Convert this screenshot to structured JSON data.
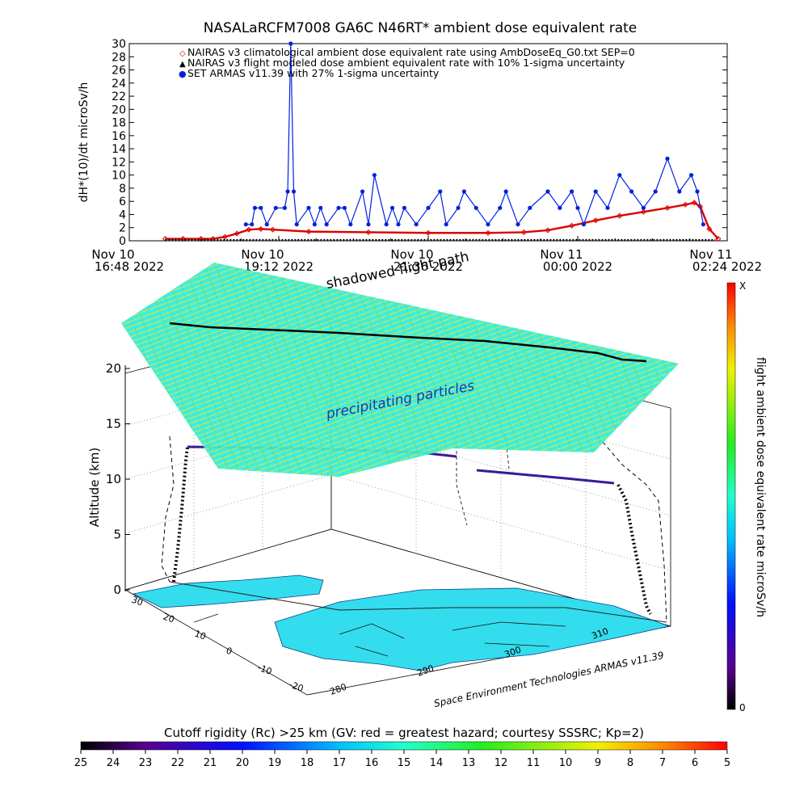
{
  "title": "NASALaRCFM7008   GA6C N46RT* ambient dose equivalent rate",
  "chart_data": [
    {
      "type": "line",
      "ylabel": "dH*(10)/dt microSv/h",
      "ylim": [
        0,
        30
      ],
      "yticks": [
        "0",
        "2",
        "4",
        "6",
        "8",
        "10",
        "12",
        "14",
        "16",
        "18",
        "20",
        "22",
        "24",
        "26",
        "28",
        "30"
      ],
      "xticks": [
        {
          "line1": "Nov 10",
          "line2": "16:48 2022"
        },
        {
          "line1": "Nov 10",
          "line2": "19:12 2022"
        },
        {
          "line1": "Nov 10",
          "line2": "21:36 2022"
        },
        {
          "line1": "Nov 11",
          "line2": "00:00 2022"
        },
        {
          "line1": "Nov 11",
          "line2": "02:24 2022"
        }
      ],
      "legend": [
        {
          "label": "NAIRAS v3 climatological ambient dose equivalent rate using AmbDoseEq_G0.txt SEP=0",
          "marker": "◇",
          "color": "#cc0000"
        },
        {
          "label": "NAIRAS v3 flight modeled dose ambient equivalent rate with 10% 1-sigma uncertainty",
          "marker": "▲",
          "color": "#000000"
        },
        {
          "label": "SET ARMAS v11.39 with 27% 1-sigma uncertainty",
          "marker": "●",
          "color": "#0022dd"
        }
      ],
      "series": [
        {
          "name": "NAIRAS v3 climatological ambient dose equivalent rate using AmbDoseEq_G0.txt SEP=0",
          "color": "#dd0000",
          "x": [
            0.06,
            0.09,
            0.12,
            0.14,
            0.16,
            0.18,
            0.2,
            0.22,
            0.24,
            0.3,
            0.4,
            0.5,
            0.6,
            0.66,
            0.7,
            0.74,
            0.78,
            0.82,
            0.86,
            0.9,
            0.93,
            0.945,
            0.955,
            0.97,
            0.985
          ],
          "values": [
            0.3,
            0.3,
            0.3,
            0.3,
            0.6,
            1.1,
            1.7,
            1.8,
            1.7,
            1.4,
            1.3,
            1.2,
            1.2,
            1.3,
            1.6,
            2.3,
            3.1,
            3.8,
            4.4,
            5.0,
            5.5,
            5.8,
            5.2,
            1.8,
            0.3
          ]
        },
        {
          "name": "NAIRAS v3 flight modeled dose ambient equivalent rate with 10% 1-sigma uncertainty",
          "color": "#000000",
          "x": [
            0.06,
            0.98
          ],
          "values": [
            0.1,
            0.1
          ]
        },
        {
          "name": "SET ARMAS v11.39 with 27% 1-sigma uncertainty",
          "color": "#0022dd",
          "x": [
            0.195,
            0.205,
            0.21,
            0.22,
            0.23,
            0.245,
            0.26,
            0.265,
            0.27,
            0.275,
            0.28,
            0.3,
            0.31,
            0.32,
            0.33,
            0.35,
            0.36,
            0.37,
            0.39,
            0.4,
            0.41,
            0.43,
            0.44,
            0.45,
            0.46,
            0.48,
            0.5,
            0.52,
            0.53,
            0.55,
            0.56,
            0.58,
            0.6,
            0.62,
            0.63,
            0.65,
            0.67,
            0.7,
            0.72,
            0.74,
            0.75,
            0.76,
            0.78,
            0.8,
            0.82,
            0.84,
            0.86,
            0.88,
            0.9,
            0.92,
            0.94,
            0.95,
            0.96
          ],
          "values": [
            2.5,
            2.5,
            5,
            5,
            2.5,
            5,
            5,
            7.5,
            30,
            7.5,
            2.5,
            5,
            2.5,
            5,
            2.5,
            5,
            5,
            2.5,
            7.5,
            2.5,
            10,
            2.5,
            5,
            2.5,
            5,
            2.5,
            5,
            7.5,
            2.5,
            5,
            7.5,
            5,
            2.5,
            5,
            7.5,
            2.5,
            5,
            7.5,
            5,
            7.5,
            5,
            2.5,
            7.5,
            5,
            10,
            7.5,
            5,
            7.5,
            12.5,
            7.5,
            10,
            7.5,
            2.5
          ]
        }
      ]
    },
    {
      "type": "3d-map",
      "zlabel": "Altitude (km)",
      "zticks": [
        "0",
        "5",
        "10",
        "15",
        "20"
      ],
      "lat_ticks": [
        "30",
        "20",
        "10",
        "0",
        "-10",
        "-20"
      ],
      "lon_ticks": [
        "280",
        "290",
        "300",
        "310"
      ],
      "annotations": {
        "shadowed": "shadowed flight path",
        "precipitating": "precipitating particles",
        "credit": "Space Environment Technologies ARMAS v11.39"
      },
      "colorbar": {
        "label": "flight ambient dose equivalent rate microSv/h",
        "top": "X",
        "bottom": "0"
      }
    }
  ],
  "rigidity_bar": {
    "title": "Cutoff rigidity (Rc) >25 km (GV: red = greatest hazard; courtesy SSSRC; Kp=2)",
    "ticks": [
      "25",
      "24",
      "23",
      "22",
      "21",
      "20",
      "19",
      "18",
      "17",
      "16",
      "15",
      "14",
      "13",
      "12",
      "11",
      "10",
      "9",
      "8",
      "7",
      "6",
      "5"
    ]
  },
  "colors": {
    "nairas_clim": "#dd0000",
    "armas": "#0022dd",
    "map_fill": "#33ddee"
  }
}
